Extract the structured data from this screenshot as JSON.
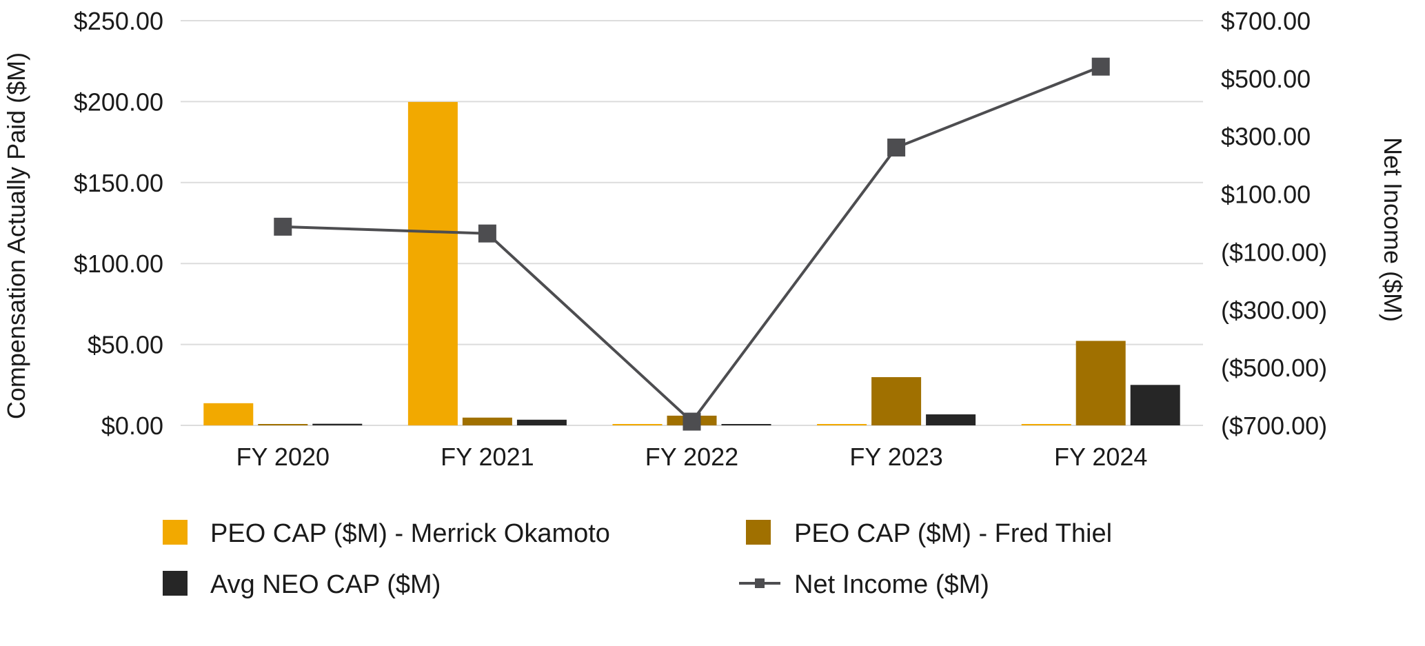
{
  "chart_data": {
    "type": "bar",
    "categories": [
      "FY 2020",
      "FY 2021",
      "FY 2022",
      "FY 2023",
      "FY 2024"
    ],
    "series": [
      {
        "name": "PEO CAP ($M) - Merrick Okamoto",
        "type": "bar",
        "axis": "left",
        "color": "#F2A900",
        "values": [
          13.7,
          199.8,
          0.0,
          0.0,
          0.0
        ]
      },
      {
        "name": "PEO CAP ($M) - Fred Thiel",
        "type": "bar",
        "axis": "left",
        "color": "#A07000",
        "values": [
          0.0,
          4.8,
          6.0,
          29.8,
          52.2
        ]
      },
      {
        "name": "Avg NEO CAP ($M)",
        "type": "bar",
        "axis": "left",
        "color": "#262626",
        "values": [
          1.0,
          3.5,
          0.5,
          6.8,
          25.0
        ]
      },
      {
        "name": "Net Income ($M)",
        "type": "line",
        "axis": "right",
        "color": "#4D4D50",
        "values": [
          -12.7,
          -36.2,
          -687.0,
          261.2,
          541.0
        ]
      }
    ],
    "y_left": {
      "label": "Compensation Actually Paid ($M)",
      "ylim": [
        0,
        250
      ],
      "ticks": [
        0,
        50,
        100,
        150,
        200,
        250
      ],
      "tick_labels": [
        "$0.00",
        "$50.00",
        "$100.00",
        "$150.00",
        "$200.00",
        "$250.00"
      ]
    },
    "y_right": {
      "label": "Net Income ($M)",
      "ylim": [
        -700,
        700
      ],
      "ticks": [
        -700,
        -500,
        -300,
        -100,
        100,
        300,
        500,
        700
      ],
      "tick_labels": [
        "($700.00)",
        "($500.00)",
        "($300.00)",
        "($100.00)",
        "$100.00",
        "$300.00",
        "$500.00",
        "$700.00"
      ]
    },
    "grid": true,
    "legend_position": "bottom"
  }
}
